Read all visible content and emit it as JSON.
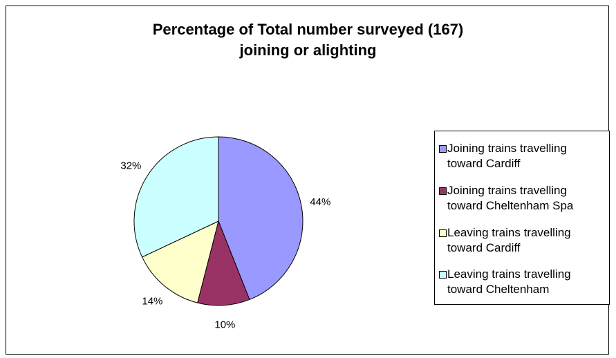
{
  "chart_data": {
    "type": "pie",
    "title": [
      "Percentage of Total number surveyed (167)",
      "joining or alighting"
    ],
    "legend_position": "right",
    "slices": [
      {
        "label": "Joining trains travelling toward Cardiff",
        "value": 44,
        "data_label": "44%",
        "color": "#9999ff"
      },
      {
        "label": "Joining trains travelling toward Cheltenham Spa",
        "value": 10,
        "data_label": "10%",
        "color": "#993366"
      },
      {
        "label": "Leaving trains travelling toward Cardiff",
        "value": 14,
        "data_label": "14%",
        "color": "#ffffcc"
      },
      {
        "label": "Leaving trains travelling toward Cheltenham",
        "value": 32,
        "data_label": "32%",
        "color": "#ccffff"
      }
    ],
    "legend_lines": [
      [
        "Joining trains travelling",
        "toward Cardiff"
      ],
      [
        "Joining trains travelling",
        "toward Cheltenham Spa"
      ],
      [
        "Leaving trains travelling",
        "toward Cardiff"
      ],
      [
        "Leaving trains travelling",
        "toward Cheltenham"
      ]
    ]
  }
}
